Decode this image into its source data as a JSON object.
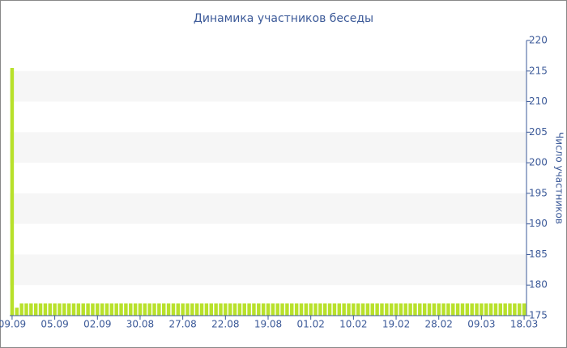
{
  "chart_data": {
    "type": "bar",
    "title": "Динамика участников беседы",
    "y_label": "Число участников",
    "categories": [
      "09.09",
      null,
      null,
      null,
      null,
      null,
      null,
      null,
      null,
      "05.09",
      null,
      null,
      null,
      null,
      null,
      null,
      null,
      null,
      "02.09",
      null,
      null,
      null,
      null,
      null,
      null,
      null,
      null,
      "30.08",
      null,
      null,
      null,
      null,
      null,
      null,
      null,
      null,
      "27.08",
      null,
      null,
      null,
      null,
      null,
      null,
      null,
      null,
      "22.08",
      null,
      null,
      null,
      null,
      null,
      null,
      null,
      null,
      "19.08",
      null,
      null,
      null,
      null,
      null,
      null,
      null,
      null,
      "01.02",
      null,
      null,
      null,
      null,
      null,
      null,
      null,
      null,
      "10.02",
      null,
      null,
      null,
      null,
      null,
      null,
      null,
      null,
      "19.02",
      null,
      null,
      null,
      null,
      null,
      null,
      null,
      null,
      "28.02",
      null,
      null,
      null,
      null,
      null,
      null,
      null,
      null,
      "09.03",
      null,
      null,
      null,
      null,
      null,
      null,
      null,
      null,
      "18.03"
    ],
    "values": [
      215.5,
      176.3,
      177,
      177,
      177,
      177,
      177,
      177,
      177,
      177,
      177,
      177,
      177,
      177,
      177,
      177,
      177,
      177,
      177,
      177,
      177,
      177,
      177,
      177,
      177,
      177,
      177,
      177,
      177,
      177,
      177,
      177,
      177,
      177,
      177,
      177,
      177,
      177,
      177,
      177,
      177,
      177,
      177,
      177,
      177,
      177,
      177,
      177,
      177,
      177,
      177,
      177,
      177,
      177,
      177,
      177,
      177,
      177,
      177,
      177,
      177,
      177,
      177,
      177,
      177,
      177,
      177,
      177,
      177,
      177,
      177,
      177,
      177,
      177,
      177,
      177,
      177,
      177,
      177,
      177,
      177,
      177,
      177,
      177,
      177,
      177,
      177,
      177,
      177,
      177,
      177,
      177,
      177,
      177,
      177,
      177,
      177,
      177,
      177,
      177,
      177,
      177,
      177,
      177,
      177,
      177,
      177,
      177,
      177
    ],
    "color": "#b8e12b",
    "ylim": [
      175,
      220
    ],
    "yticks": [
      175,
      180,
      185,
      190,
      195,
      200,
      205,
      210,
      215,
      220
    ],
    "y_axis_side": "right",
    "banded_grid": true
  }
}
